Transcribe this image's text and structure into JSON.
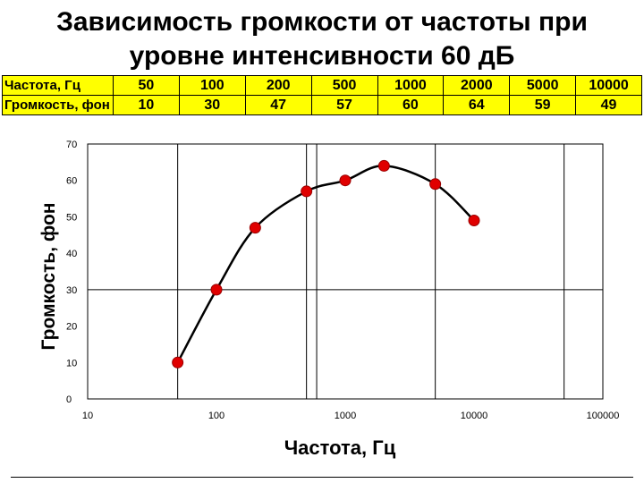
{
  "title_line1": "Зависимость громкости от частоты при",
  "title_line2": "уровне интенсивности 60 дБ",
  "table": {
    "row1_label": "Частота, Гц",
    "row2_label": "Громкость, фон",
    "frequencies": [
      "50",
      "100",
      "200",
      "500",
      "1000",
      "2000",
      "5000",
      "10000"
    ],
    "loudness": [
      "10",
      "30",
      "47",
      "57",
      "60",
      "64",
      "59",
      "49"
    ],
    "background": "#ffff00"
  },
  "chart_data": {
    "type": "line",
    "x_scale": "log",
    "xlabel": "Частота, Гц",
    "ylabel": "Громкость, фон",
    "xlim": [
      10,
      100000
    ],
    "ylim": [
      0,
      70
    ],
    "x_ticks": [
      "10",
      "100",
      "1000",
      "10000",
      "100000"
    ],
    "y_ticks": [
      "0",
      "10",
      "20",
      "30",
      "40",
      "50",
      "60",
      "70"
    ],
    "x": [
      50,
      100,
      200,
      500,
      1000,
      2000,
      5000,
      10000
    ],
    "y": [
      10,
      30,
      47,
      57,
      60,
      64,
      59,
      49
    ],
    "grid_x": [
      50,
      500,
      600,
      5000,
      50000
    ],
    "grid_y": [
      30
    ],
    "marker_color": "#e00000",
    "line_color": "#000000"
  }
}
